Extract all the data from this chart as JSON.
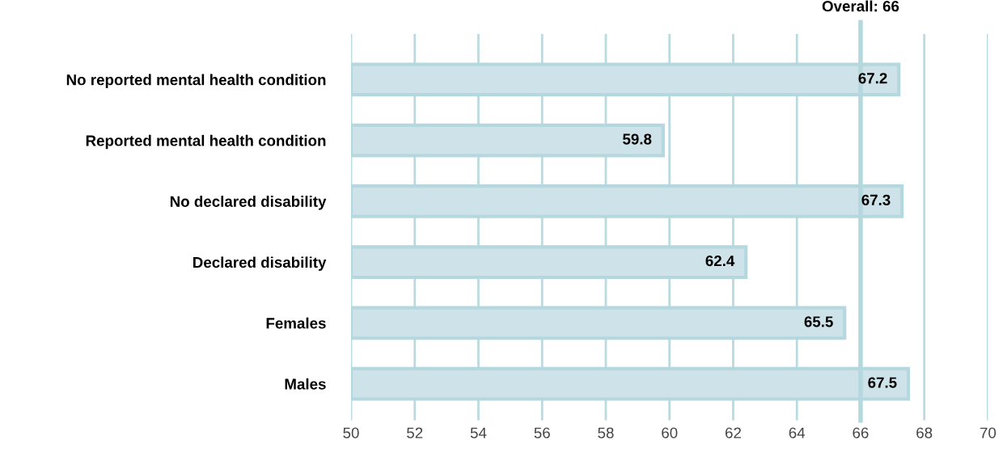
{
  "chart_data": {
    "type": "bar",
    "orientation": "horizontal",
    "categories": [
      "No reported mental health condition",
      "Reported mental health condition",
      "No declared disability",
      "Declared disability",
      "Females",
      "Males"
    ],
    "values": [
      67.2,
      59.8,
      67.3,
      62.4,
      65.5,
      67.5
    ],
    "color": "#cde3e9",
    "xlim": [
      50,
      70
    ],
    "xticks": [
      50,
      52,
      54,
      56,
      58,
      60,
      62,
      64,
      66,
      68,
      70
    ],
    "grid": "x",
    "legend": false,
    "data_labels": true,
    "ref_lines": [
      {
        "axis": "x",
        "value": 66,
        "label": "Overall: 66",
        "color": "#b5d8de"
      }
    ]
  }
}
